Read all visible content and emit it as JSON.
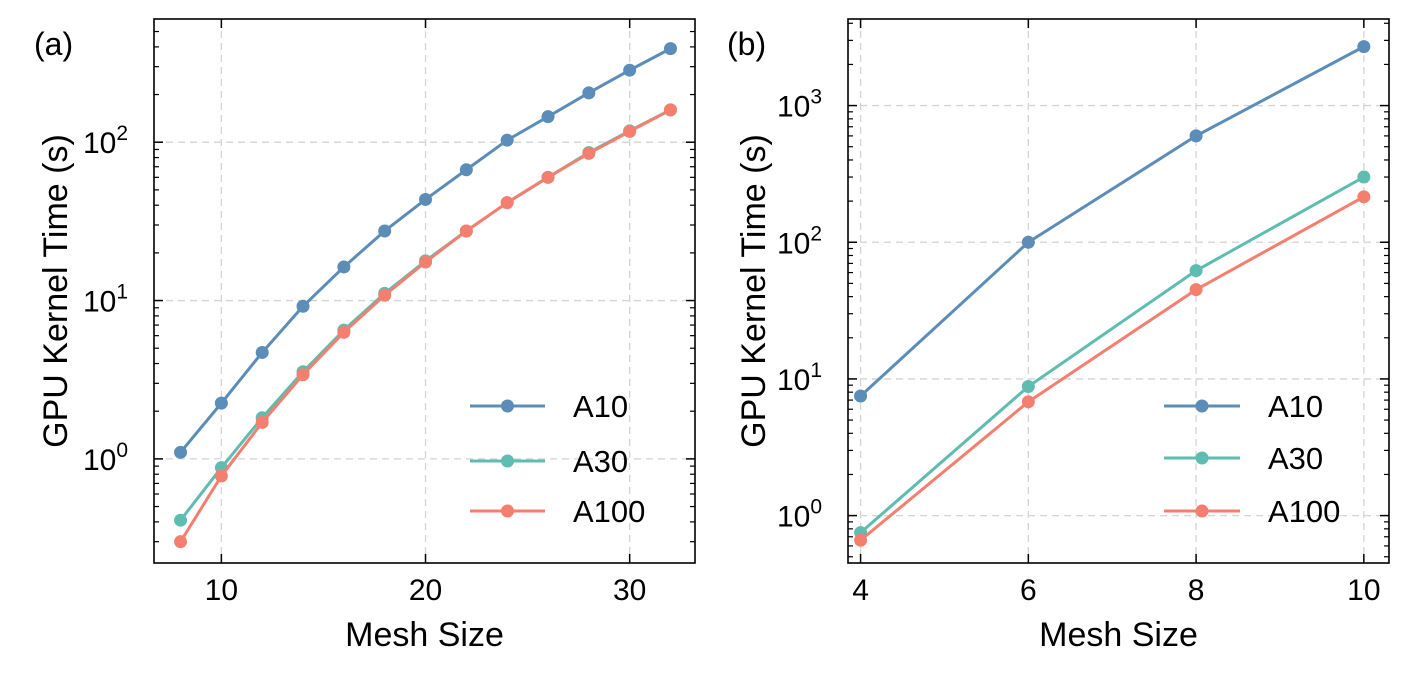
{
  "figure": {
    "colors": {
      "A10": "#5b8db8",
      "A30": "#5fbcb0",
      "A100": "#f47f6e"
    }
  },
  "chart_data": [
    {
      "type": "line",
      "panel_label": "(a)",
      "xlabel": "Mesh Size",
      "ylabel": "GPU Kernel Time (s)",
      "yscale": "log",
      "xlim": [
        6.7,
        33.2
      ],
      "ylim": [
        0.22,
        600
      ],
      "x_ticks": [
        10,
        20,
        30
      ],
      "y_ticks": [
        {
          "base": "10",
          "exp": "0",
          "value": 1
        },
        {
          "base": "10",
          "exp": "1",
          "value": 10
        },
        {
          "base": "10",
          "exp": "2",
          "value": 100
        }
      ],
      "grid": true,
      "legend_position": "lower-right",
      "series": [
        {
          "name": "A10",
          "color": "#5b8db8",
          "x": [
            8,
            10,
            12,
            14,
            16,
            18,
            20,
            22,
            24,
            26,
            28,
            30,
            32
          ],
          "y": [
            1.1,
            2.25,
            4.7,
            9.2,
            16.3,
            27.5,
            43.5,
            67,
            103,
            145,
            205,
            285,
            390
          ]
        },
        {
          "name": "A30",
          "color": "#5fbcb0",
          "x": [
            8,
            10,
            12,
            14,
            16,
            18,
            20,
            22,
            24,
            26,
            28,
            30,
            32
          ],
          "y": [
            0.41,
            0.88,
            1.82,
            3.55,
            6.5,
            11.1,
            17.8,
            27.5,
            41.5,
            60,
            86,
            118,
            160
          ]
        },
        {
          "name": "A100",
          "color": "#f47f6e",
          "x": [
            8,
            10,
            12,
            14,
            16,
            18,
            20,
            22,
            24,
            26,
            28,
            30,
            32
          ],
          "y": [
            0.3,
            0.78,
            1.7,
            3.4,
            6.3,
            10.8,
            17.5,
            27.5,
            41.5,
            60,
            85,
            117,
            160
          ]
        }
      ]
    },
    {
      "type": "line",
      "panel_label": "(b)",
      "xlabel": "Mesh Size",
      "ylabel": "GPU Kernel Time (s)",
      "yscale": "log",
      "xlim": [
        3.85,
        10.3
      ],
      "ylim": [
        0.45,
        4300
      ],
      "x_ticks": [
        4,
        6,
        8,
        10
      ],
      "y_ticks": [
        {
          "base": "10",
          "exp": "0",
          "value": 1
        },
        {
          "base": "10",
          "exp": "1",
          "value": 10
        },
        {
          "base": "10",
          "exp": "2",
          "value": 100
        },
        {
          "base": "10",
          "exp": "3",
          "value": 1000
        }
      ],
      "grid": true,
      "legend_position": "lower-right",
      "series": [
        {
          "name": "A10",
          "color": "#5b8db8",
          "x": [
            4,
            6,
            8,
            10
          ],
          "y": [
            7.5,
            100,
            600,
            2700
          ]
        },
        {
          "name": "A30",
          "color": "#5fbcb0",
          "x": [
            4,
            6,
            8,
            10
          ],
          "y": [
            0.75,
            8.8,
            62,
            300
          ]
        },
        {
          "name": "A100",
          "color": "#f47f6e",
          "x": [
            4,
            6,
            8,
            10
          ],
          "y": [
            0.66,
            6.8,
            45,
            215
          ]
        }
      ]
    }
  ]
}
